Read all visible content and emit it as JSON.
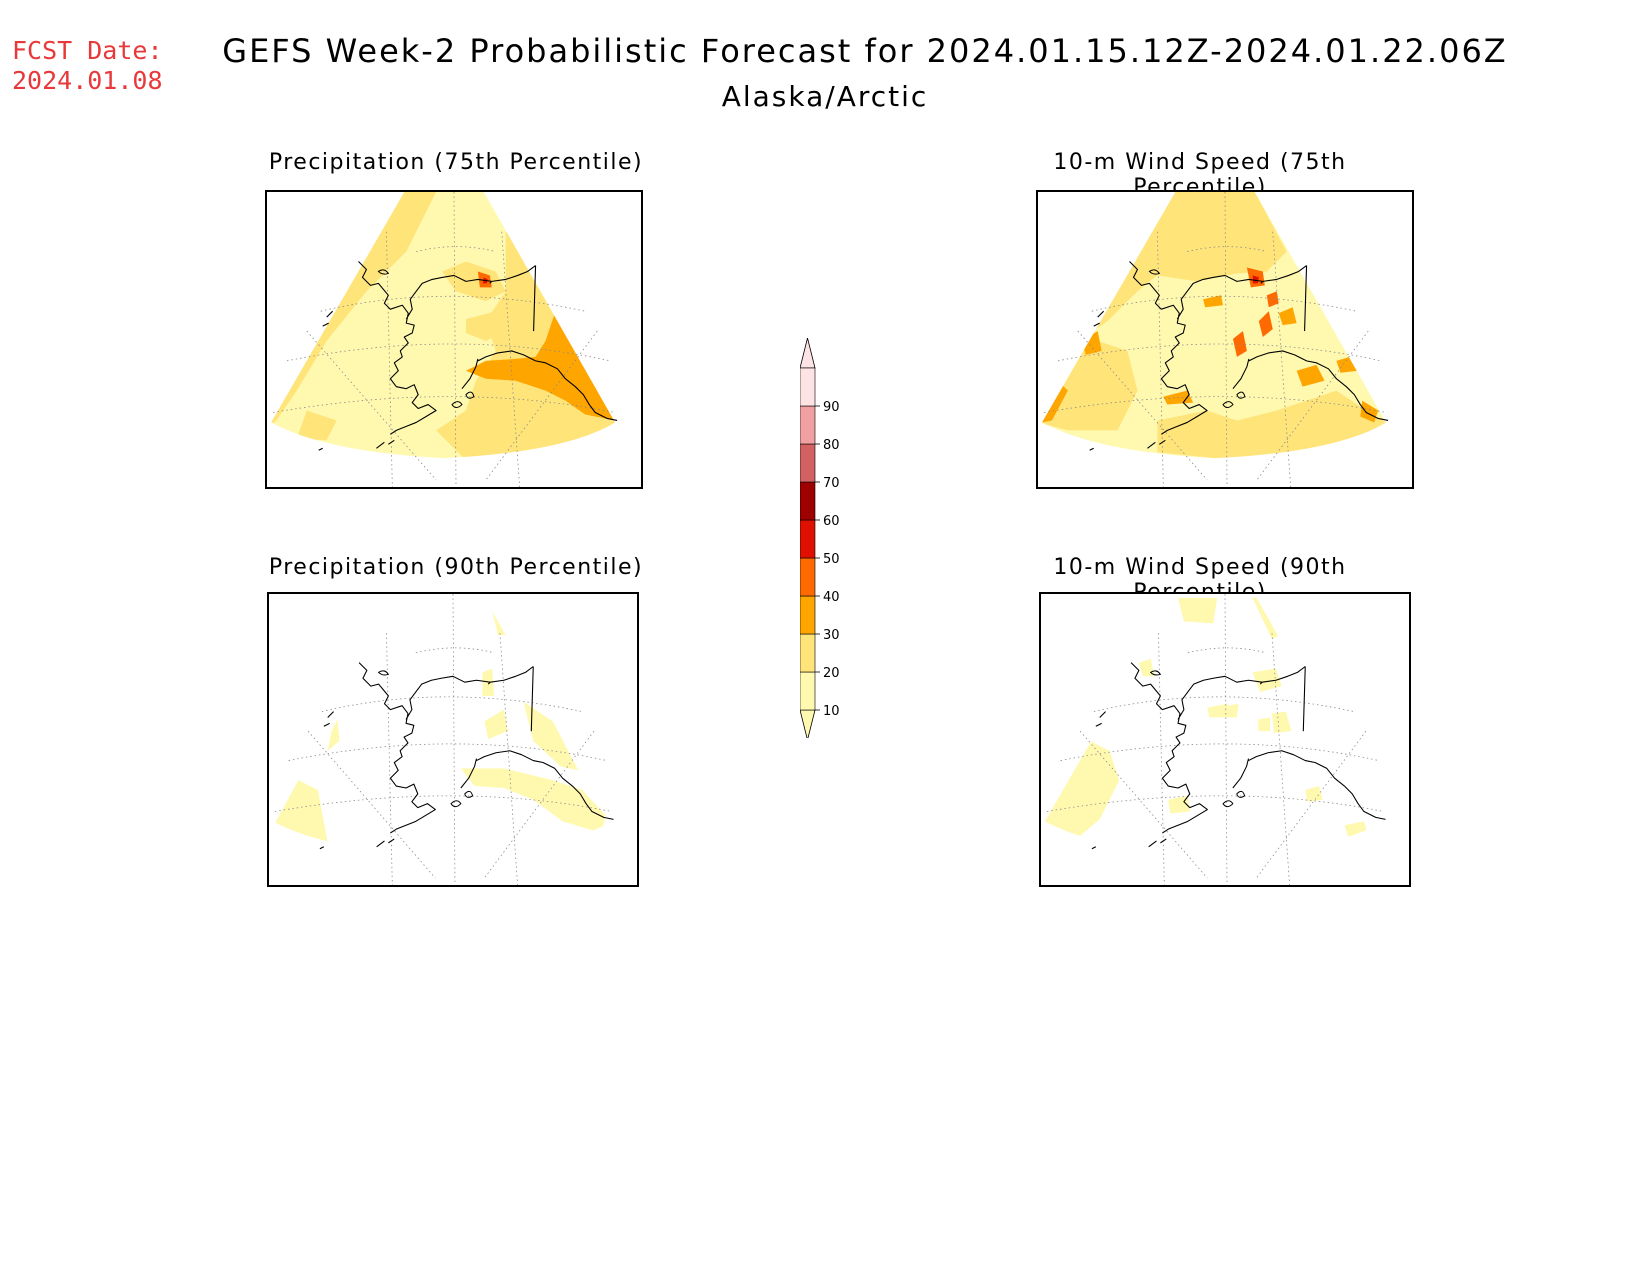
{
  "header": {
    "fcst_label": "FCST Date:",
    "fcst_date": "2024.01.08",
    "title": "GEFS Week-2 Probabilistic Forecast for 2024.01.15.12Z-2024.01.22.06Z",
    "region": "Alaska/Arctic"
  },
  "panels": [
    {
      "id": "precip75",
      "title": "Precipitation (75th Percentile)"
    },
    {
      "id": "wind75",
      "title": "10-m Wind Speed (75th Percentile)"
    },
    {
      "id": "precip90",
      "title": "Precipitation (90th Percentile)"
    },
    {
      "id": "wind90",
      "title": "10-m Wind Speed (90th Percentile)"
    }
  ],
  "colorbar": {
    "levels": [
      "10",
      "20",
      "30",
      "40",
      "50",
      "60",
      "70",
      "80",
      "90"
    ],
    "colors": [
      "#fff9b0",
      "#ffe47a",
      "#ffa500",
      "#ff6a00",
      "#e01000",
      "#9e0000",
      "#d26262",
      "#f0a0a0",
      "#fde3e3"
    ]
  },
  "map_colors": {
    "level10": "#fff9b0",
    "level20": "#ffe47a",
    "level30": "#ffa500",
    "level40": "#ff6a00",
    "level50": "#e01000",
    "coast": "#000000",
    "grid": "#888888"
  }
}
